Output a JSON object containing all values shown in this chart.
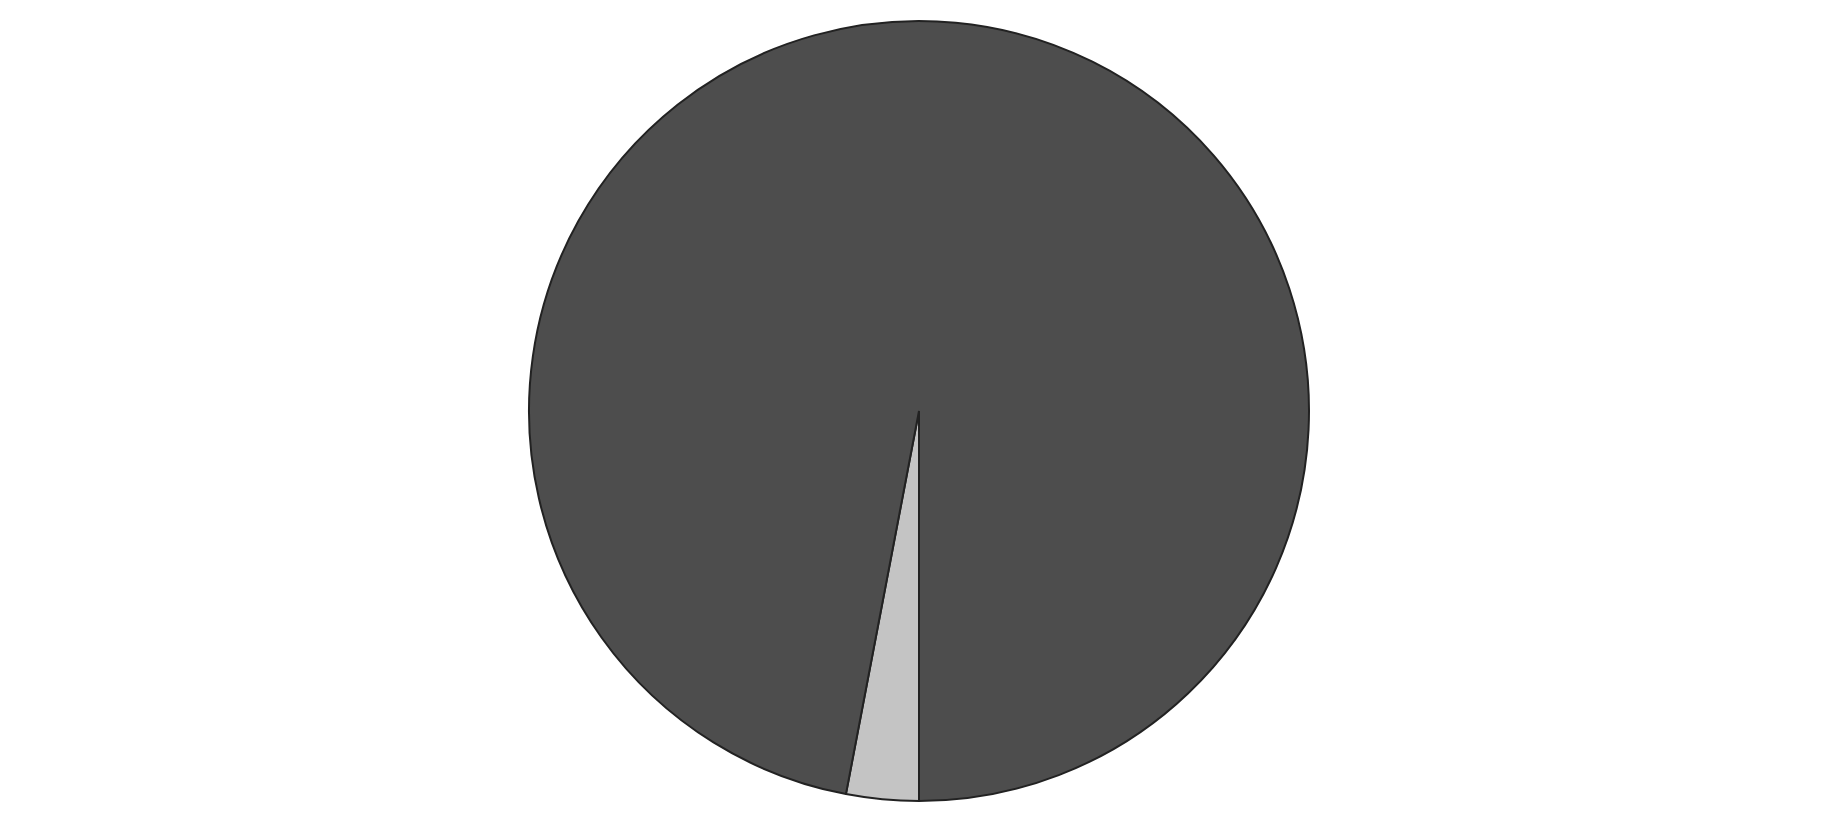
{
  "chart_data": {
    "type": "pie",
    "categories": [
      null,
      null
    ],
    "values": [
      3,
      97
    ],
    "colors": [
      "#c4c4c4",
      "#4d4d4d"
    ],
    "legend": false
  }
}
